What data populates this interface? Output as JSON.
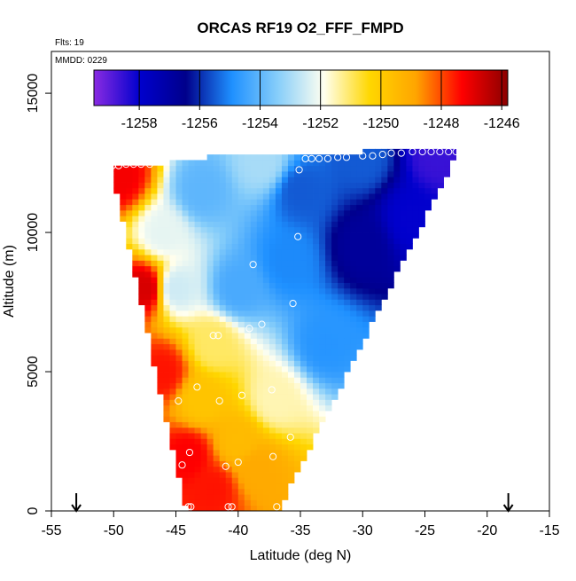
{
  "chart_data": {
    "type": "heatmap",
    "title": "ORCAS RF19 O2_FFF_FMPD",
    "subtitle_flts": "Flts: 19",
    "subtitle_mmdd": "MMDD: 0229",
    "xlabel": "Latitude (deg N)",
    "ylabel": "Altitude (m)",
    "xlim": [
      -55,
      -15
    ],
    "ylim": [
      0,
      16500
    ],
    "x_ticks": [
      -55,
      -50,
      -45,
      -40,
      -35,
      -30,
      -25,
      -20,
      -15
    ],
    "y_ticks": [
      0,
      5000,
      10000,
      15000
    ],
    "colorbar": {
      "range": [
        -1259.5,
        -1245.8
      ],
      "ticks": [
        -1258,
        -1256,
        -1254,
        -1252,
        -1250,
        -1248,
        -1246
      ],
      "colors": [
        "#8a2be2",
        "#0000cd",
        "#00008b",
        "#1e90ff",
        "#87cefa",
        "#fffff0",
        "#ffd700",
        "#ffa500",
        "#ff0000",
        "#8b0000"
      ]
    },
    "region_polygon": [
      [
        -50.2,
        12400
      ],
      [
        -47,
        12400
      ],
      [
        -42.3,
        12700
      ],
      [
        -30,
        12900
      ],
      [
        -22.2,
        13000
      ],
      [
        -36.8,
        0
      ],
      [
        -44.2,
        0
      ]
    ],
    "field_anchors": [
      {
        "lat": -49.5,
        "alt": 12000,
        "value": -1247.2
      },
      {
        "lat": -47.5,
        "alt": 8000,
        "value": -1246.8
      },
      {
        "lat": -46.0,
        "alt": 10000,
        "value": -1252.2
      },
      {
        "lat": -43.0,
        "alt": 11500,
        "value": -1254.0
      },
      {
        "lat": -38.0,
        "alt": 12500,
        "value": -1253.0
      },
      {
        "lat": -30.0,
        "alt": 12700,
        "value": -1255.5
      },
      {
        "lat": -24.0,
        "alt": 12800,
        "value": -1258.6
      },
      {
        "lat": -26.0,
        "alt": 10500,
        "value": -1258.0
      },
      {
        "lat": -30.0,
        "alt": 9500,
        "value": -1256.8
      },
      {
        "lat": -36.0,
        "alt": 9000,
        "value": -1255.0
      },
      {
        "lat": -40.0,
        "alt": 8000,
        "value": -1254.3
      },
      {
        "lat": -33.0,
        "alt": 6000,
        "value": -1254.8
      },
      {
        "lat": -42.0,
        "alt": 6000,
        "value": -1251.0
      },
      {
        "lat": -37.0,
        "alt": 4000,
        "value": -1251.5
      },
      {
        "lat": -43.0,
        "alt": 4000,
        "value": -1249.8
      },
      {
        "lat": -40.0,
        "alt": 2500,
        "value": -1249.5
      },
      {
        "lat": -38.5,
        "alt": 1500,
        "value": -1249.0
      },
      {
        "lat": -42.0,
        "alt": 800,
        "value": -1247.5
      },
      {
        "lat": -44.0,
        "alt": 2000,
        "value": -1247.3
      },
      {
        "lat": -46.0,
        "alt": 5000,
        "value": -1247.5
      },
      {
        "lat": -35.0,
        "alt": 11500,
        "value": -1255.5
      },
      {
        "lat": -45.0,
        "alt": 8000,
        "value": -1252.5
      }
    ],
    "observations": [
      {
        "lat": -50.1,
        "alt": 12400
      },
      {
        "lat": -49.6,
        "alt": 12400
      },
      {
        "lat": -49.0,
        "alt": 12450
      },
      {
        "lat": -48.4,
        "alt": 12450
      },
      {
        "lat": -47.8,
        "alt": 12450
      },
      {
        "lat": -47.1,
        "alt": 12450
      },
      {
        "lat": -35.1,
        "alt": 12250
      },
      {
        "lat": -34.6,
        "alt": 12650
      },
      {
        "lat": -34.1,
        "alt": 12650
      },
      {
        "lat": -33.5,
        "alt": 12650
      },
      {
        "lat": -32.8,
        "alt": 12650
      },
      {
        "lat": -32.0,
        "alt": 12700
      },
      {
        "lat": -31.3,
        "alt": 12700
      },
      {
        "lat": -30.0,
        "alt": 12750
      },
      {
        "lat": -29.2,
        "alt": 12750
      },
      {
        "lat": -28.4,
        "alt": 12800
      },
      {
        "lat": -27.7,
        "alt": 12850
      },
      {
        "lat": -26.9,
        "alt": 12850
      },
      {
        "lat": -26.0,
        "alt": 12900
      },
      {
        "lat": -25.2,
        "alt": 12900
      },
      {
        "lat": -24.5,
        "alt": 12900
      },
      {
        "lat": -23.8,
        "alt": 12900
      },
      {
        "lat": -23.1,
        "alt": 12900
      },
      {
        "lat": -22.5,
        "alt": 12900
      },
      {
        "lat": -35.2,
        "alt": 9850
      },
      {
        "lat": -38.8,
        "alt": 8850
      },
      {
        "lat": -35.6,
        "alt": 7450
      },
      {
        "lat": -38.1,
        "alt": 6700
      },
      {
        "lat": -39.1,
        "alt": 6550
      },
      {
        "lat": -41.6,
        "alt": 6300
      },
      {
        "lat": -42.0,
        "alt": 6300
      },
      {
        "lat": -43.3,
        "alt": 4450
      },
      {
        "lat": -37.3,
        "alt": 4350
      },
      {
        "lat": -39.7,
        "alt": 4150
      },
      {
        "lat": -41.5,
        "alt": 3950
      },
      {
        "lat": -44.8,
        "alt": 3950
      },
      {
        "lat": -35.8,
        "alt": 2650
      },
      {
        "lat": -43.9,
        "alt": 2100
      },
      {
        "lat": -37.2,
        "alt": 1950
      },
      {
        "lat": -40.0,
        "alt": 1750
      },
      {
        "lat": -41.0,
        "alt": 1600
      },
      {
        "lat": -44.5,
        "alt": 1650
      },
      {
        "lat": -44.0,
        "alt": 150
      },
      {
        "lat": -43.8,
        "alt": 150
      },
      {
        "lat": -40.8,
        "alt": 150
      },
      {
        "lat": -40.5,
        "alt": 150
      },
      {
        "lat": -36.9,
        "alt": 150
      }
    ],
    "arrows_lat": [
      -53.0,
      -18.3
    ]
  }
}
